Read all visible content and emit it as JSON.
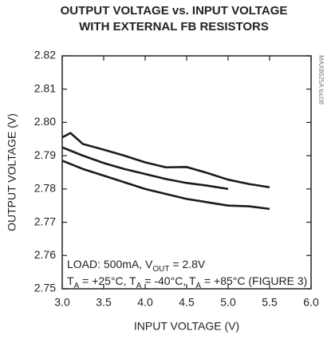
{
  "chart_data": {
    "type": "line",
    "title": [
      "OUTPUT VOLTAGE vs. INPUT VOLTAGE",
      "WITH EXTERNAL FB RESISTORS"
    ],
    "x_label": "INPUT VOLTAGE (V)",
    "y_label": "OUTPUT VOLTAGE (V)",
    "figure_id": "MAX8625A toc08",
    "annotation": [
      [
        "LOAD: 500mA, V",
        "OUT",
        " = 2.8V"
      ],
      [
        "T",
        "A",
        " = +25°C, T",
        "A",
        " = -40°C, T",
        "A",
        " = +85°C (FIGURE 3)"
      ]
    ],
    "x": [
      3.0,
      3.1,
      3.25,
      3.5,
      3.75,
      4.0,
      4.25,
      4.5,
      4.75,
      5.0,
      5.25,
      5.5
    ],
    "series": [
      {
        "color": "#1a1a1a",
        "values": [
          2.7955,
          2.7968,
          2.7935,
          2.7918,
          2.79,
          2.788,
          2.7865,
          2.7866,
          2.7848,
          2.7828,
          2.7815,
          2.7805
        ]
      },
      {
        "color": "#1a1a1a",
        "values": [
          2.7925,
          2.7915,
          2.79,
          2.7878,
          2.786,
          2.7845,
          2.783,
          2.7818,
          2.781,
          2.78,
          null,
          null
        ]
      },
      {
        "color": "#1a1a1a",
        "values": [
          2.7885,
          2.7875,
          2.786,
          2.784,
          2.782,
          2.78,
          2.7785,
          2.777,
          2.776,
          2.775,
          2.7748,
          2.774
        ]
      }
    ],
    "xlim": [
      3.0,
      6.0
    ],
    "xticks": [
      {
        "value": 3.0,
        "label": "3.0"
      },
      3.5,
      {
        "value": 4.0,
        "label": "4.0"
      },
      4.5,
      {
        "value": 5.0,
        "label": "5.0"
      },
      5.5,
      {
        "value": 6.0,
        "label": "6.0"
      }
    ],
    "ylim": [
      2.75,
      2.82
    ],
    "yticks": [
      2.75,
      2.76,
      2.77,
      2.78,
      2.79,
      {
        "value": 2.8,
        "label": "2.80"
      },
      2.81,
      2.82
    ],
    "grid": false
  }
}
